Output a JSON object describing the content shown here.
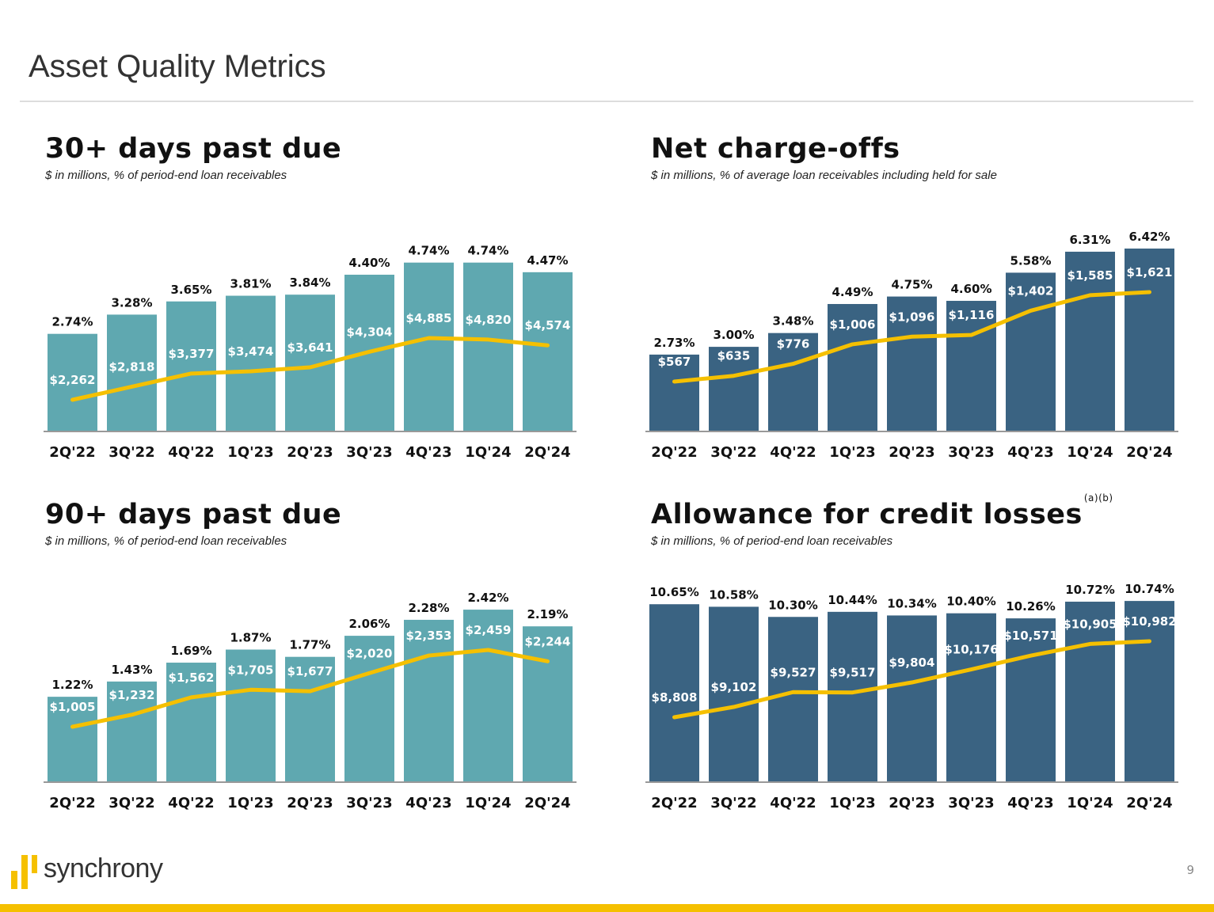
{
  "page": {
    "title": "Asset Quality Metrics",
    "page_number": "9",
    "logo_text": "synchrony"
  },
  "colors": {
    "teal": "#5fa8b0",
    "navy": "#3a6382",
    "line": "#f5c000",
    "brand_yellow": "#f5c000"
  },
  "chart_data": [
    {
      "type": "bar",
      "title": "30+ days past due",
      "subtitle": "$ in millions, % of period-end loan receivables",
      "bar_color": "teal",
      "categories": [
        "2Q'22",
        "3Q'22",
        "4Q'22",
        "1Q'23",
        "2Q'23",
        "3Q'23",
        "4Q'23",
        "1Q'24",
        "2Q'24"
      ],
      "series": [
        {
          "values_pct": [
            2.74,
            3.28,
            3.65,
            3.81,
            3.84,
            4.4,
            4.74,
            4.74,
            4.47
          ],
          "mark": "bar"
        },
        {
          "values_usd_millions": [
            2262,
            2818,
            3377,
            3474,
            3641,
            4304,
            4885,
            4820,
            4574
          ],
          "mark": "line"
        }
      ]
    },
    {
      "type": "bar",
      "title": "Net charge-offs",
      "subtitle": "$ in millions, % of average loan receivables including held for sale",
      "bar_color": "navy",
      "categories": [
        "2Q'22",
        "3Q'22",
        "4Q'22",
        "1Q'23",
        "2Q'23",
        "3Q'23",
        "4Q'23",
        "1Q'24",
        "2Q'24"
      ],
      "series": [
        {
          "values_pct": [
            2.73,
            3.0,
            3.48,
            4.49,
            4.75,
            4.6,
            5.58,
            6.31,
            6.42
          ],
          "mark": "bar"
        },
        {
          "values_usd_millions": [
            567,
            635,
            776,
            1006,
            1096,
            1116,
            1402,
            1585,
            1621
          ],
          "mark": "line"
        }
      ]
    },
    {
      "type": "bar",
      "title": "90+ days past due",
      "subtitle": "$ in millions, % of period-end loan receivables",
      "bar_color": "teal",
      "categories": [
        "2Q'22",
        "3Q'22",
        "4Q'22",
        "1Q'23",
        "2Q'23",
        "3Q'23",
        "4Q'23",
        "1Q'24",
        "2Q'24"
      ],
      "series": [
        {
          "values_pct": [
            1.22,
            1.43,
            1.69,
            1.87,
            1.77,
            2.06,
            2.28,
            2.42,
            2.19
          ],
          "mark": "bar"
        },
        {
          "values_usd_millions": [
            1005,
            1232,
            1562,
            1705,
            1677,
            2020,
            2353,
            2459,
            2244
          ],
          "mark": "line"
        }
      ]
    },
    {
      "type": "bar",
      "title": "Allowance for credit losses",
      "title_superscript": "(a)(b)",
      "subtitle": "$ in millions, % of period-end loan receivables",
      "bar_color": "navy",
      "categories": [
        "2Q'22",
        "3Q'22",
        "4Q'22",
        "1Q'23",
        "2Q'23",
        "3Q'23",
        "4Q'23",
        "1Q'24",
        "2Q'24"
      ],
      "series": [
        {
          "values_pct": [
            10.65,
            10.58,
            10.3,
            10.44,
            10.34,
            10.4,
            10.26,
            10.72,
            10.74
          ],
          "mark": "bar"
        },
        {
          "values_usd_millions": [
            8808,
            9102,
            9527,
            9517,
            9804,
            10176,
            10571,
            10905,
            10982
          ],
          "mark": "line"
        }
      ]
    }
  ]
}
